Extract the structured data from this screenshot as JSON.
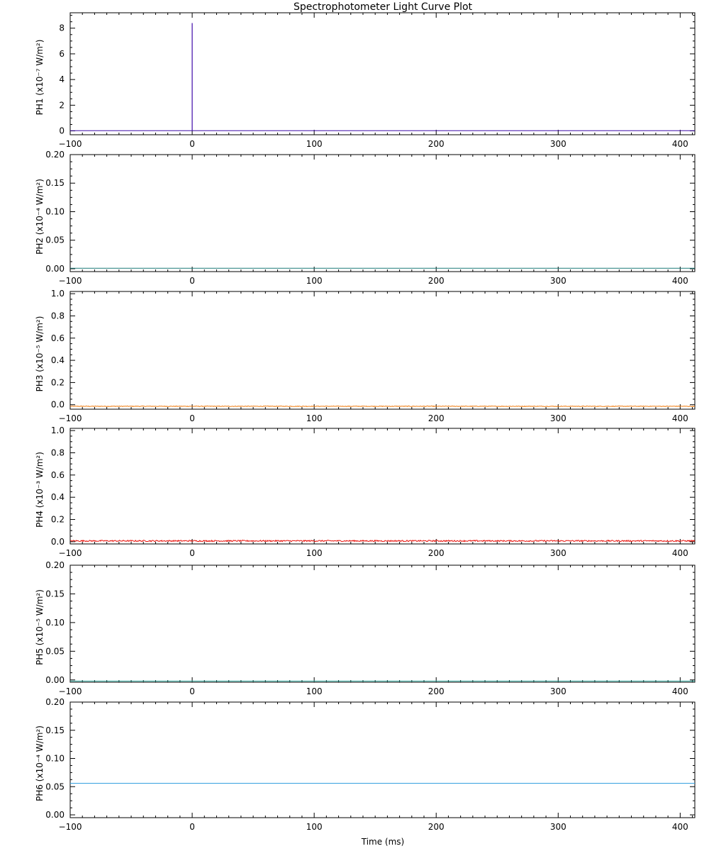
{
  "title": "Spectrophotometer Light Curve Plot",
  "chart_data": {
    "type": "line",
    "title": "Spectrophotometer Light Curve Plot",
    "xlabel": "Time (ms)",
    "xlim": [
      -100,
      412
    ],
    "xticks": [
      -100,
      0,
      100,
      200,
      300,
      400
    ],
    "x_tick_labels": [
      "−100",
      "0",
      "100",
      "200",
      "300",
      "400"
    ],
    "grid": false,
    "panels": [
      {
        "name": "PH1",
        "ylabel_name": "PH1",
        "ylabel_unit": "(x10⁻⁷ W/m²)",
        "color": "#3f0aa8",
        "ylim": [
          -0.3,
          9.2
        ],
        "yticks": [
          0,
          2,
          4,
          6,
          8
        ],
        "ytick_labels": [
          "0",
          "2",
          "4",
          "6",
          "8"
        ],
        "baseline": 0.02,
        "noise": 0.0,
        "spikes": [
          {
            "x": 0,
            "y": 8.4
          }
        ]
      },
      {
        "name": "PH2",
        "ylabel_name": "PH2",
        "ylabel_unit": "(x10⁻⁴ W/m²)",
        "color": "#1a7a78",
        "ylim": [
          -0.005,
          0.2
        ],
        "yticks": [
          0.0,
          0.05,
          0.1,
          0.15,
          0.2
        ],
        "ytick_labels": [
          "0.00",
          "0.05",
          "0.10",
          "0.15",
          "0.20"
        ],
        "baseline": 0.001,
        "noise": 0.0,
        "spikes": []
      },
      {
        "name": "PH3",
        "ylabel_name": "PH3",
        "ylabel_unit": "(x10⁻⁵ W/m²)",
        "color": "#f07c10",
        "ylim": [
          -0.04,
          1.02
        ],
        "yticks": [
          0.0,
          0.2,
          0.4,
          0.6,
          0.8,
          1.0
        ],
        "ytick_labels": [
          "0.0",
          "0.2",
          "0.4",
          "0.6",
          "0.8",
          "1.0"
        ],
        "baseline": -0.015,
        "noise": 0.006,
        "spikes": []
      },
      {
        "name": "PH4",
        "ylabel_name": "PH4",
        "ylabel_unit": "(x10⁻³ W/m²)",
        "color": "#e8120c",
        "ylim": [
          -0.02,
          1.02
        ],
        "yticks": [
          0.0,
          0.2,
          0.4,
          0.6,
          0.8,
          1.0
        ],
        "ytick_labels": [
          "0.0",
          "0.2",
          "0.4",
          "0.6",
          "0.8",
          "1.0"
        ],
        "baseline": 0.005,
        "noise": 0.012,
        "spikes": []
      },
      {
        "name": "PH5",
        "ylabel_name": "PH5",
        "ylabel_unit": "(x10⁻⁵ W/m²)",
        "color": "#2aa59a",
        "ylim": [
          -0.004,
          0.2
        ],
        "yticks": [
          0.0,
          0.05,
          0.1,
          0.15,
          0.2
        ],
        "ytick_labels": [
          "0.00",
          "0.05",
          "0.10",
          "0.15",
          "0.20"
        ],
        "baseline": -0.002,
        "noise": 0.0,
        "spikes": []
      },
      {
        "name": "PH6",
        "ylabel_name": "PH6",
        "ylabel_unit": "(x10⁻⁴ W/m²)",
        "color": "#34a0e0",
        "ylim": [
          -0.005,
          0.2
        ],
        "yticks": [
          0.0,
          0.05,
          0.1,
          0.15,
          0.2
        ],
        "ytick_labels": [
          "0.00",
          "0.05",
          "0.10",
          "0.15",
          "0.20"
        ],
        "baseline": 0.056,
        "noise": 0.0,
        "spikes": []
      }
    ]
  }
}
